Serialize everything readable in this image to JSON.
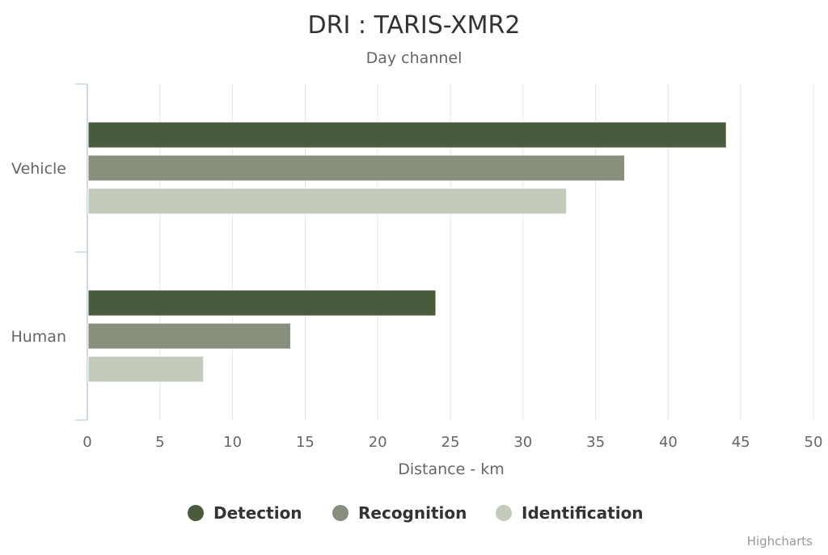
{
  "chart_data": {
    "type": "bar",
    "orientation": "horizontal",
    "title": "DRI : TARIS-XMR2",
    "subtitle": "Day channel",
    "categories": [
      "Vehicle",
      "Human"
    ],
    "series": [
      {
        "name": "Detection",
        "values": [
          44,
          24
        ],
        "color": "#4a5a3c"
      },
      {
        "name": "Recognition",
        "values": [
          37,
          14
        ],
        "color": "#878f7d"
      },
      {
        "name": "Identification",
        "values": [
          33,
          8
        ],
        "color": "#c3ccba"
      }
    ],
    "xlabel": "Distance - km",
    "xlim": [
      0,
      50
    ],
    "xticks": [
      "0",
      "5",
      "10",
      "15",
      "20",
      "25",
      "30",
      "35",
      "40",
      "45",
      "50"
    ],
    "grid": true,
    "legend_position": "bottom"
  },
  "credits": "Highcharts"
}
